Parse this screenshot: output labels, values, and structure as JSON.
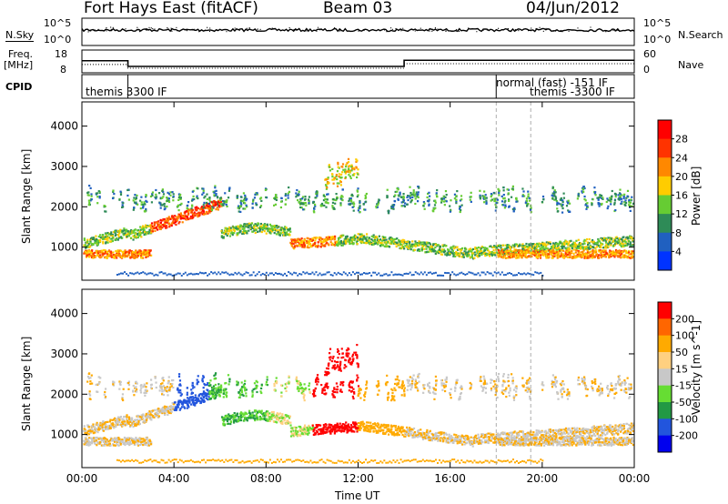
{
  "header": {
    "station": "Fort Hays East (fitACF)",
    "beam": "Beam 03",
    "date": "04/Jun/2012"
  },
  "left_labels": {
    "nsky": "N.Sky",
    "freq_line1": "Freq.",
    "freq_line2": "[MHz]",
    "cpid": "CPID"
  },
  "right_labels": {
    "nsearch": "N.Search",
    "nave": "Nave"
  },
  "strip_ticks": {
    "noise_top_left": "10^5",
    "noise_bot_left": "10^0",
    "noise_top_right": "10^5",
    "noise_bot_right": "10^0",
    "freq_top": "18",
    "freq_bot": "8",
    "nave_top": "60",
    "nave_bot": "0"
  },
  "cpid_labels": {
    "a": "themis 3300 IF",
    "b": "normal (fast) -151 IF",
    "c": "themis -3300 IF"
  },
  "chart_data": {
    "type": "heatmap",
    "x_axis": {
      "label": "Time UT",
      "range_hours": [
        0,
        24
      ],
      "ticks": [
        "00:00",
        "04:00",
        "08:00",
        "12:00",
        "16:00",
        "20:00",
        "00:00"
      ]
    },
    "y_axis": {
      "label": "Slant Range [km]",
      "range_km": [
        180,
        4600
      ],
      "ticks": [
        "1000",
        "2000",
        "3000",
        "4000"
      ]
    },
    "panels": [
      {
        "quantity": "Power",
        "colorbar_label": "Power [dB]",
        "colorbar_ticks": [
          "28",
          "24",
          "20",
          "16",
          "12",
          "8",
          "4"
        ],
        "colorbar_range": [
          0,
          32
        ],
        "colors": [
          "#0033ff",
          "#2060c0",
          "#2e8b57",
          "#66cc33",
          "#ffcc00",
          "#ff8800",
          "#ff3300",
          "#ff0000"
        ]
      },
      {
        "quantity": "Velocity",
        "colorbar_label": "Velocity [m s^-1]",
        "colorbar_ticks": [
          "200",
          "100",
          "50",
          "15",
          "-15",
          "-50",
          "-100",
          "-200"
        ],
        "colorbar_range": [
          -250,
          250
        ],
        "colors": [
          "#ff0000",
          "#ff6600",
          "#ffaa00",
          "#ffd080",
          "#c8c8c8",
          "#66dd33",
          "#229944",
          "#2255dd",
          "#0000ee"
        ]
      }
    ],
    "frequency_MHz": [
      {
        "from_h": 0.0,
        "to_h": 2.0,
        "value": 13.3
      },
      {
        "from_h": 2.0,
        "to_h": 14.0,
        "value": 10.8
      },
      {
        "from_h": 14.0,
        "to_h": 24.0,
        "value": 13.5
      }
    ],
    "nave": [
      {
        "from_h": 0.0,
        "to_h": 2.0,
        "value": 22
      },
      {
        "from_h": 2.0,
        "to_h": 14.0,
        "value": 12
      },
      {
        "from_h": 14.0,
        "to_h": 24.0,
        "value": 24
      }
    ],
    "cpid_change_hours": [
      2.0,
      18.0
    ]
  }
}
